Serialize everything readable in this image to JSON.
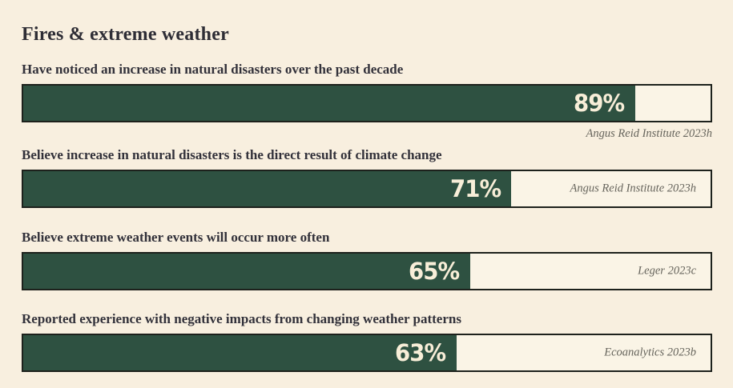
{
  "title": "Fires & extreme weather",
  "rows": [
    {
      "label": "Have noticed an increase in natural disasters over the past decade",
      "value": 89,
      "value_label": "89%",
      "source": "Angus Reid Institute 2023h"
    },
    {
      "label": "Believe increase in natural disasters is the direct result of climate change",
      "value": 71,
      "value_label": "71%",
      "source": "Angus Reid Institute 2023h"
    },
    {
      "label": "Believe extreme weather events will occur more often",
      "value": 65,
      "value_label": "65%",
      "source": "Leger 2023c"
    },
    {
      "label": "Reported experience with negative impacts from changing weather patterns",
      "value": 63,
      "value_label": "63%",
      "source": "Ecoanalytics 2023b"
    }
  ],
  "colors": {
    "background": "#f8efdf",
    "bar_fill": "#2e5141",
    "bar_track": "#faf4e6",
    "bar_border": "#1d211c",
    "percent_text": "#f8eed8",
    "heading_text": "#2e2d35",
    "label_text": "#32313a",
    "source_text": "#66645c"
  },
  "chart_data": {
    "type": "bar",
    "orientation": "horizontal",
    "title": "Fires & extreme weather",
    "categories": [
      "Have noticed an increase in natural disasters over the past decade",
      "Believe increase in natural disasters is the direct result of climate change",
      "Believe extreme weather events will occur more often",
      "Reported experience with negative impacts from changing weather patterns"
    ],
    "values": [
      89,
      71,
      65,
      63
    ],
    "data_labels": [
      "89%",
      "71%",
      "65%",
      "63%"
    ],
    "annotations": [
      "Angus Reid Institute 2023h",
      "Angus Reid Institute 2023h",
      "Leger 2023c",
      "Ecoanalytics 2023b"
    ],
    "xlabel": "",
    "ylabel": "",
    "xlim": [
      0,
      100
    ],
    "unit": "%",
    "grid": false,
    "legend": false
  }
}
